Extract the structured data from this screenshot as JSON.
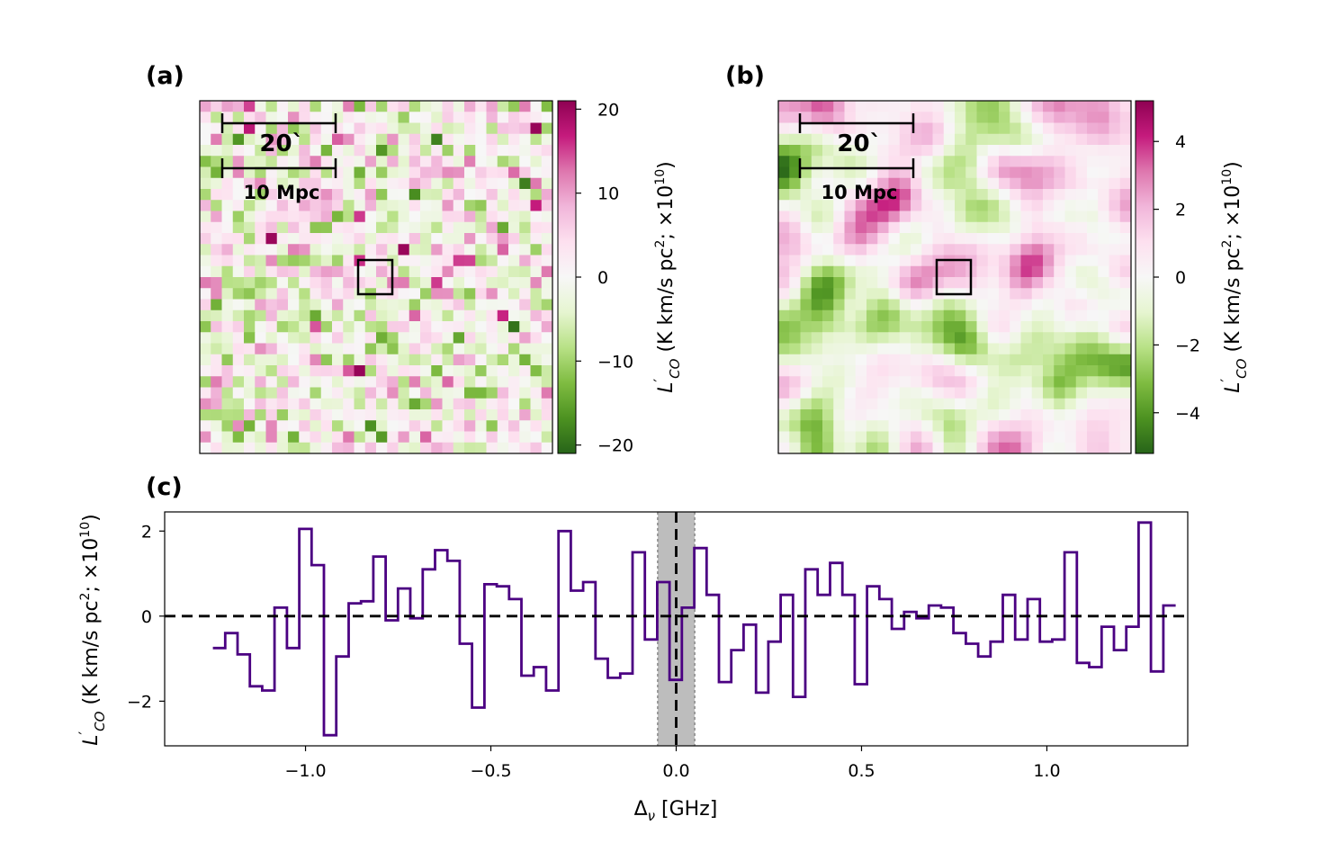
{
  "figure": {
    "panel_labels": [
      "(a)",
      "(b)",
      "(c)"
    ]
  },
  "chart_data": [
    {
      "type": "heatmap",
      "panel": "(a)",
      "grid": "32x32 pixels (random-looking noise map)",
      "colormap": "PiYG (green negative, white zero, magenta positive)",
      "clim": [
        -21,
        21
      ],
      "colorbar_ticks": [
        20,
        10,
        0,
        -10,
        -20
      ],
      "colorbar_tick_labels": [
        "20",
        "10",
        "0",
        "−10",
        "−20"
      ],
      "colorbar_label": "L′CO (K km/s pc²; ×10¹⁰)",
      "scalebar_angle": "20`",
      "scalebar_distance": "10 Mpc",
      "seed": 7,
      "smoothing": 0
    },
    {
      "type": "heatmap",
      "panel": "(b)",
      "grid": "32x32 pixels (smoothed version)",
      "colormap": "PiYG",
      "clim": [
        -5.2,
        5.2
      ],
      "colorbar_ticks": [
        4,
        2,
        0,
        -2,
        -4
      ],
      "colorbar_tick_labels": [
        "4",
        "2",
        "0",
        "−2",
        "−4"
      ],
      "colorbar_label": "L′CO (K km/s pc²; ×10¹⁰)",
      "scalebar_angle": "20`",
      "scalebar_distance": "10 Mpc",
      "seed": 7,
      "smoothing": 3
    },
    {
      "type": "line",
      "panel": "(c)",
      "style": "step",
      "color": "#4b0082",
      "xlabel": "Δν [GHz]",
      "ylabel": "L′CO (K km/s pc²; ×10¹⁰)",
      "xlim": [
        -1.38,
        1.38
      ],
      "ylim": [
        -3.05,
        2.45
      ],
      "xticks": [
        -1.0,
        -0.5,
        0.0,
        0.5,
        1.0
      ],
      "xtick_labels": [
        "−1.0",
        "−0.5",
        "0.0",
        "0.5",
        "1.0"
      ],
      "yticks": [
        2,
        0,
        -2
      ],
      "ytick_labels": [
        "2",
        "0",
        "−2"
      ],
      "shaded_band": [
        -0.05,
        0.05
      ],
      "x_step": 0.0333,
      "x_start": -1.25,
      "y": [
        -0.75,
        -0.4,
        -0.9,
        -1.65,
        -1.75,
        0.2,
        -0.75,
        2.05,
        1.2,
        -2.8,
        -0.95,
        0.3,
        0.35,
        1.4,
        -0.1,
        0.65,
        -0.05,
        1.1,
        1.55,
        1.3,
        -0.65,
        -2.15,
        0.75,
        0.7,
        0.4,
        -1.4,
        -1.2,
        -1.75,
        2.0,
        0.6,
        0.8,
        -1.0,
        -1.45,
        -1.35,
        1.5,
        -0.55,
        0.8,
        -1.5,
        0.2,
        1.6,
        0.5,
        -1.55,
        -0.8,
        -0.2,
        -1.8,
        -0.6,
        0.5,
        -1.9,
        1.1,
        0.5,
        1.25,
        0.5,
        -1.6,
        0.7,
        0.4,
        -0.3,
        0.1,
        -0.05,
        0.25,
        0.2,
        -0.4,
        -0.65,
        -0.95,
        -0.6,
        0.5,
        -0.55,
        0.4,
        -0.6,
        -0.55,
        1.5,
        -1.1,
        -1.2,
        -0.25,
        -0.8,
        -0.25,
        2.2,
        -1.3,
        0.25
      ]
    }
  ]
}
